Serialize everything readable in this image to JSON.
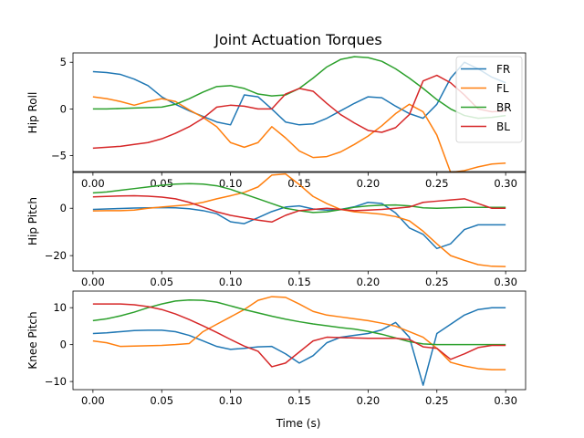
{
  "chart_data": {
    "type": "line",
    "title": "Joint Actuation Torques",
    "xlabel": "Time (s)",
    "x": [
      0.0,
      0.01,
      0.02,
      0.03,
      0.04,
      0.05,
      0.06,
      0.07,
      0.08,
      0.09,
      0.1,
      0.11,
      0.12,
      0.13,
      0.14,
      0.15,
      0.16,
      0.17,
      0.18,
      0.19,
      0.2,
      0.21,
      0.22,
      0.23,
      0.24,
      0.25,
      0.26,
      0.27,
      0.28,
      0.29,
      0.3
    ],
    "xlim": [
      -0.0145,
      0.3145
    ],
    "xticks": [
      0.0,
      0.05,
      0.1,
      0.15,
      0.2,
      0.25,
      0.3
    ],
    "xtick_labels": [
      "0.00",
      "0.05",
      "0.10",
      "0.15",
      "0.20",
      "0.25",
      "0.30"
    ],
    "colors": {
      "FR": "#1f77b4",
      "FL": "#ff7f0e",
      "BR": "#2ca02c",
      "BL": "#d62728"
    },
    "subplots": [
      {
        "ylabel": "Hip Roll",
        "ylim": [
          -6.8,
          6.0
        ],
        "yticks": [
          -5,
          0,
          5
        ],
        "ytick_labels": [
          "−5",
          "0",
          "5"
        ],
        "legend": "top-right",
        "series": [
          {
            "name": "FR",
            "values": [
              4.0,
              3.9,
              3.7,
              3.2,
              2.5,
              1.3,
              0.5,
              -0.2,
              -0.8,
              -1.4,
              -1.7,
              1.5,
              1.3,
              0.0,
              -1.4,
              -1.7,
              -1.6,
              -1.0,
              -0.2,
              0.6,
              1.3,
              1.2,
              0.3,
              -0.5,
              -1.0,
              0.5,
              3.3,
              5.0,
              4.3,
              3.4,
              2.8
            ]
          },
          {
            "name": "FL",
            "values": [
              1.3,
              1.1,
              0.8,
              0.4,
              0.8,
              1.1,
              0.8,
              -0.1,
              -0.9,
              -1.9,
              -3.6,
              -4.1,
              -3.6,
              -1.9,
              -3.1,
              -4.5,
              -5.2,
              -5.1,
              -4.6,
              -3.8,
              -2.9,
              -1.8,
              -0.5,
              0.5,
              -0.3,
              -2.8,
              -6.8,
              -6.6,
              -6.2,
              -5.9,
              -5.8
            ]
          },
          {
            "name": "BR",
            "values": [
              0.0,
              0.0,
              0.05,
              0.1,
              0.15,
              0.2,
              0.5,
              1.1,
              1.8,
              2.4,
              2.5,
              2.2,
              1.6,
              1.4,
              1.5,
              2.2,
              3.3,
              4.5,
              5.3,
              5.6,
              5.5,
              5.1,
              4.3,
              3.3,
              2.2,
              1.0,
              0.0,
              -0.7,
              -1.0,
              -0.9,
              -0.7
            ]
          },
          {
            "name": "BL",
            "values": [
              -4.2,
              -4.1,
              -4.0,
              -3.8,
              -3.6,
              -3.2,
              -2.6,
              -1.9,
              -1.0,
              0.2,
              0.4,
              0.3,
              0.0,
              0.0,
              1.6,
              2.2,
              1.9,
              0.6,
              -0.6,
              -1.5,
              -2.3,
              -2.5,
              -2.0,
              -0.6,
              3.0,
              3.6,
              2.8,
              1.5,
              0.0,
              -0.3,
              -0.2
            ]
          }
        ]
      },
      {
        "ylabel": "Hip Pitch",
        "ylim": [
          -26.5,
          15.5
        ],
        "yticks": [
          -20,
          0
        ],
        "ytick_labels": [
          "−20",
          "0"
        ],
        "series": [
          {
            "name": "FR",
            "values": [
              -0.5,
              -0.3,
              -0.1,
              0.1,
              0.2,
              0.3,
              0.2,
              -0.2,
              -1.0,
              -2.3,
              -5.7,
              -6.5,
              -4.0,
              -1.4,
              0.5,
              1.0,
              -0.3,
              -0.8,
              -0.5,
              0.6,
              2.5,
              2.0,
              -2.0,
              -8.3,
              -11.0,
              -17.0,
              -15.0,
              -9.0,
              -7.0,
              -7.0,
              -7.0
            ]
          },
          {
            "name": "FL",
            "values": [
              -1.1,
              -1.0,
              -1.0,
              -0.8,
              0.0,
              0.5,
              1.0,
              1.5,
              2.5,
              4.0,
              5.3,
              6.7,
              9.0,
              14.0,
              14.5,
              10.0,
              5.0,
              2.0,
              -0.5,
              -1.5,
              -2.0,
              -2.5,
              -3.5,
              -5.3,
              -9.7,
              -15.0,
              -20.0,
              -22.0,
              -23.8,
              -24.5,
              -24.6
            ]
          },
          {
            "name": "BR",
            "values": [
              6.5,
              6.9,
              7.6,
              8.3,
              9.0,
              9.7,
              10.2,
              10.4,
              10.2,
              9.5,
              8.0,
              6.0,
              4.0,
              2.0,
              0.0,
              -1.0,
              -1.8,
              -1.5,
              -0.6,
              0.4,
              1.0,
              1.3,
              1.4,
              1.0,
              0.2,
              0.0,
              0.2,
              0.4,
              0.4,
              0.4,
              0.4
            ]
          },
          {
            "name": "BL",
            "values": [
              4.8,
              5.0,
              5.2,
              5.3,
              5.1,
              4.7,
              4.0,
              2.5,
              0.5,
              -1.5,
              -3.0,
              -4.0,
              -5.0,
              -5.8,
              -3.0,
              -1.0,
              -0.5,
              0.0,
              -0.5,
              -1.0,
              -0.8,
              -0.5,
              0.0,
              0.5,
              2.5,
              3.0,
              3.5,
              4.0,
              2.0,
              0.0,
              0.0
            ]
          }
        ]
      },
      {
        "ylabel": "Knee Pitch",
        "ylim": [
          -12.2,
          14.5
        ],
        "yticks": [
          -10,
          0,
          10
        ],
        "ytick_labels": [
          "−10",
          "0",
          "10"
        ],
        "series": [
          {
            "name": "FR",
            "values": [
              3.0,
              3.2,
              3.5,
              3.8,
              3.9,
              3.9,
              3.5,
              2.5,
              1.0,
              -0.5,
              -1.3,
              -1.0,
              -0.6,
              -0.5,
              -2.5,
              -5.0,
              -3.0,
              0.5,
              2.0,
              2.5,
              3.0,
              4.0,
              6.0,
              2.0,
              -11.0,
              3.0,
              5.5,
              8.0,
              9.5,
              10.0,
              10.0
            ]
          },
          {
            "name": "FL",
            "values": [
              1.0,
              0.5,
              -0.5,
              -0.4,
              -0.3,
              -0.2,
              0.0,
              0.3,
              3.5,
              5.5,
              7.5,
              9.5,
              12.0,
              13.0,
              12.8,
              11.0,
              9.0,
              8.0,
              7.5,
              7.0,
              6.5,
              5.8,
              5.0,
              3.5,
              2.0,
              -1.0,
              -4.8,
              -5.8,
              -6.5,
              -6.8,
              -6.8
            ]
          },
          {
            "name": "BR",
            "values": [
              6.5,
              7.0,
              7.8,
              8.8,
              10.0,
              11.0,
              11.8,
              12.1,
              12.0,
              11.5,
              10.5,
              9.5,
              8.6,
              7.7,
              6.9,
              6.2,
              5.6,
              5.1,
              4.6,
              4.2,
              3.6,
              2.8,
              1.8,
              0.8,
              0.2,
              0.0,
              0.0,
              0.0,
              0.0,
              0.0,
              0.0
            ]
          },
          {
            "name": "BL",
            "values": [
              11.0,
              11.0,
              11.0,
              10.8,
              10.3,
              9.5,
              8.3,
              6.8,
              5.1,
              3.3,
              1.4,
              -0.4,
              -1.8,
              -6.0,
              -5.0,
              -2.0,
              1.0,
              2.0,
              1.9,
              1.8,
              1.7,
              1.7,
              1.7,
              1.4,
              -0.6,
              -1.0,
              -4.0,
              -2.5,
              -0.8,
              -0.2,
              -0.2
            ]
          }
        ]
      }
    ]
  }
}
